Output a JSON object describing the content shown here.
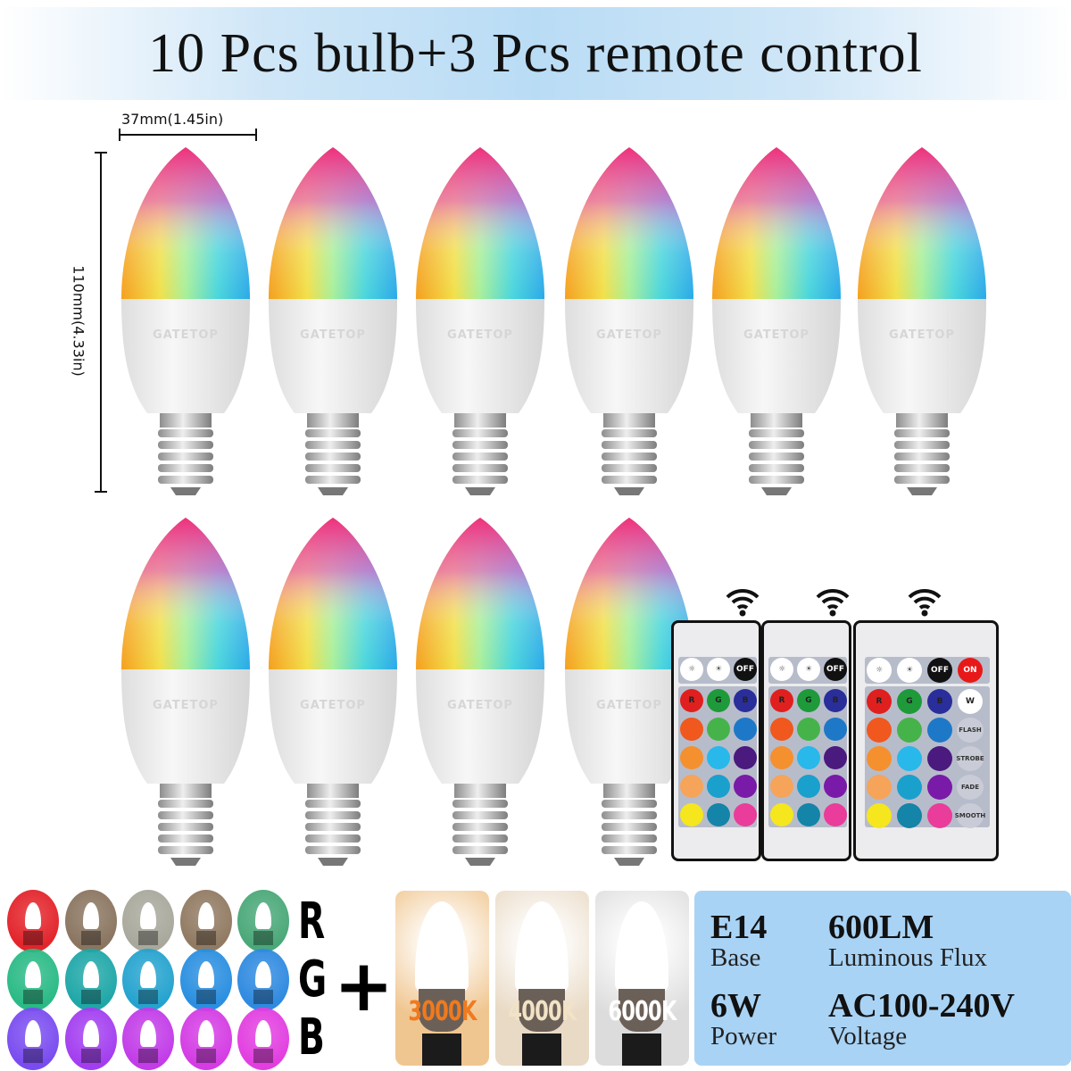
{
  "title": "10 Pcs bulb+3 Pcs remote control",
  "dimensions": {
    "width": "37mm(1.45in)",
    "height": "110mm(4.33in)"
  },
  "bulb_brand": "GATETOP",
  "remote": {
    "top_buttons": [
      "brightness-down",
      "brightness-up",
      "OFF",
      "ON"
    ],
    "color_buttons": [
      "R",
      "G",
      "B",
      "W"
    ],
    "mode_buttons": [
      "FLASH",
      "STROBE",
      "FADE",
      "SMOOTH"
    ]
  },
  "rgb_letters": [
    "R",
    "G",
    "B"
  ],
  "swatch_colors": [
    [
      "#e3242b",
      "#8a7560",
      "#a8a89c",
      "#917a62",
      "#4aa878"
    ],
    [
      "#2aba86",
      "#1fa7a8",
      "#25a3cf",
      "#2a8fe0",
      "#2f8ae0"
    ],
    [
      "#7a4cf0",
      "#a33ef0",
      "#c23ce8",
      "#d43ce4",
      "#e23ee0"
    ]
  ],
  "plus": "+",
  "color_temperatures": [
    {
      "label": "3000K",
      "bg": "#f0c690",
      "color": "#f07a1e"
    },
    {
      "label": "4000K",
      "bg": "#e9dac5",
      "color": "#f2e2c6"
    },
    {
      "label": "6000K",
      "bg": "#dcdcdc",
      "color": "#ffffff"
    }
  ],
  "specs": [
    {
      "value": "E14",
      "label": "Base"
    },
    {
      "value": "600LM",
      "label": "Luminous Flux"
    },
    {
      "value": "6W",
      "label": "Power"
    },
    {
      "value": "AC100-240V",
      "label": "Voltage"
    }
  ]
}
